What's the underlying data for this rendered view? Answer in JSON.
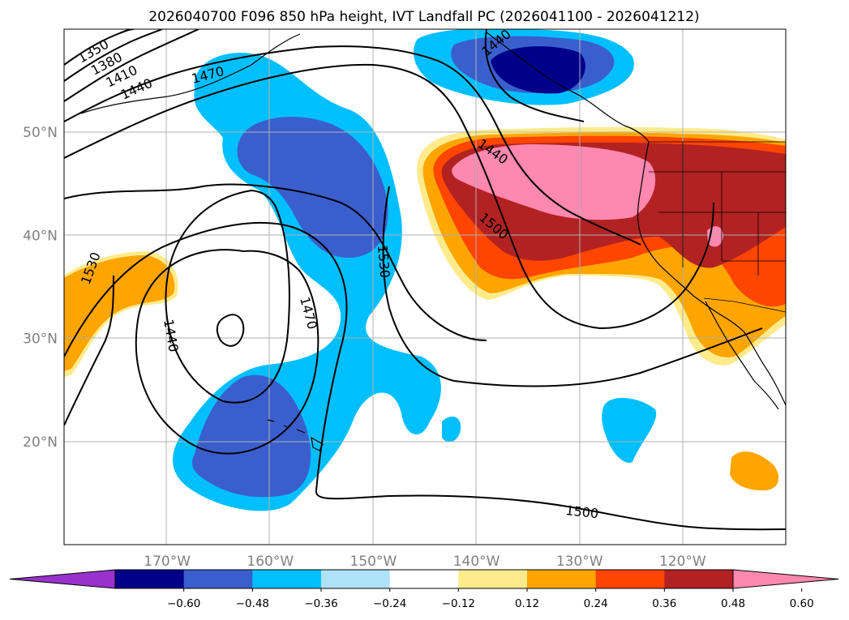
{
  "title": "2026040700 F096 850 hPa height, IVT Landfall PC (2026041100 - 2026041212)",
  "map": {
    "projection": "Plate Carree",
    "lon_range": [
      -180,
      -110
    ],
    "lat_range": [
      10,
      60
    ],
    "lat_ticks": [
      {
        "value": 20,
        "label": "20°N"
      },
      {
        "value": 30,
        "label": "30°N"
      },
      {
        "value": 40,
        "label": "40°N"
      },
      {
        "value": 50,
        "label": "50°N"
      }
    ],
    "lon_ticks": [
      {
        "value": -170,
        "label": "170°W"
      },
      {
        "value": -160,
        "label": "160°W"
      },
      {
        "value": -150,
        "label": "150°W"
      },
      {
        "value": -140,
        "label": "140°W"
      },
      {
        "value": -130,
        "label": "130°W"
      },
      {
        "value": -120,
        "label": "120°W"
      }
    ]
  },
  "contours": {
    "variable": "850 hPa geopotential height",
    "units": "m",
    "labels": [
      "1350",
      "1380",
      "1410",
      "1440",
      "1470",
      "1530",
      "1440",
      "1470",
      "1530",
      "1440",
      "1500",
      "1500",
      "1440"
    ]
  },
  "colorbar": {
    "variable": "IVT Landfall PC",
    "colors": [
      "#9932cc",
      "#00008b",
      "#3a5fcd",
      "#00bfff",
      "#afe1f8",
      "#ffffff",
      "#ffeb8c",
      "#ffa500",
      "#ff4500",
      "#b22222",
      "#ff88b0"
    ],
    "ticks": [
      "−0.60",
      "−0.48",
      "−0.36",
      "−0.24",
      "−0.12",
      "0.12",
      "0.24",
      "0.36",
      "0.48",
      "0.60"
    ],
    "extend": "both"
  }
}
